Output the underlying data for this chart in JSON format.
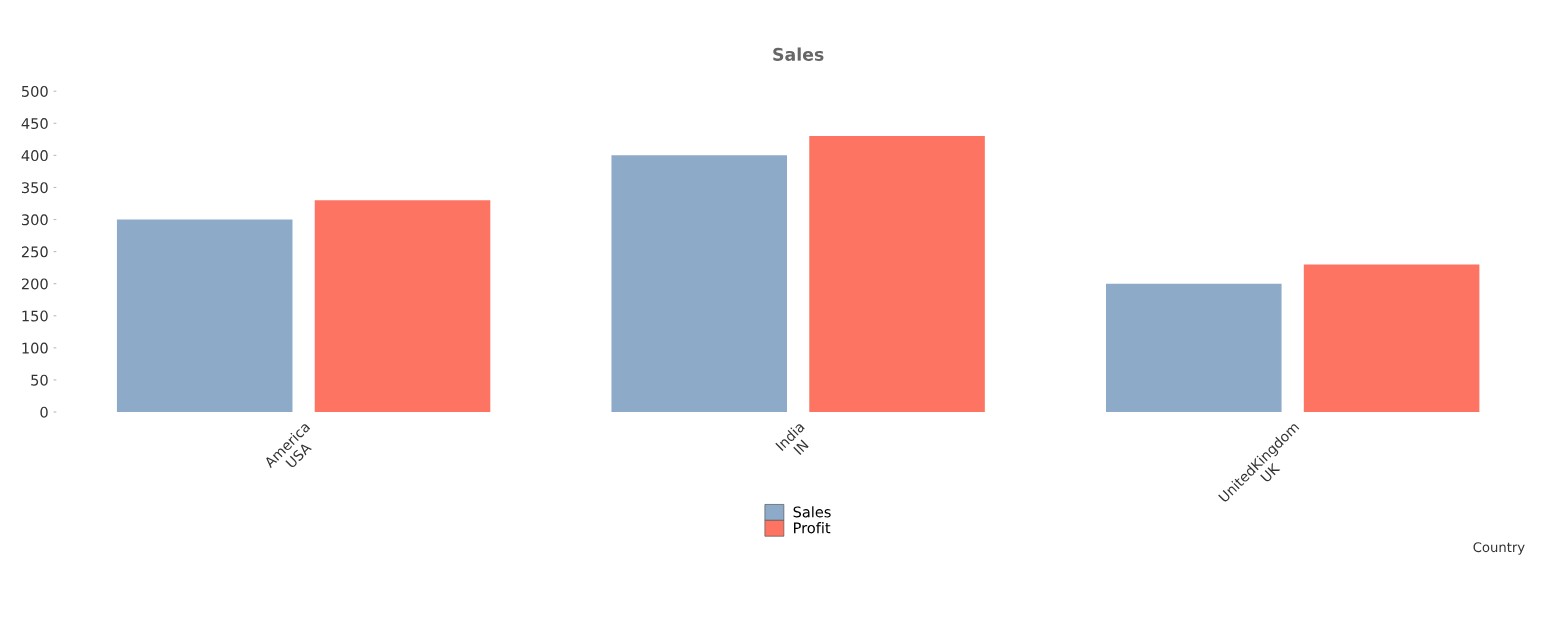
{
  "chart_data": {
    "type": "bar",
    "title": "Sales",
    "xlabel": "Country",
    "categories": [
      "America\nUSA",
      "India\nIN",
      "UnitedKingdom\nUK"
    ],
    "series": [
      {
        "name": "Sales",
        "color": "#8eaac9",
        "values": [
          300,
          400,
          200
        ]
      },
      {
        "name": "Profit",
        "color": "#fe7462",
        "values": [
          330,
          430,
          230
        ]
      }
    ],
    "ylim": [
      0,
      500
    ],
    "yticks": [
      0,
      50,
      100,
      150,
      200,
      250,
      300,
      350,
      400,
      450,
      500
    ],
    "grid": false,
    "legend": "bottom"
  }
}
